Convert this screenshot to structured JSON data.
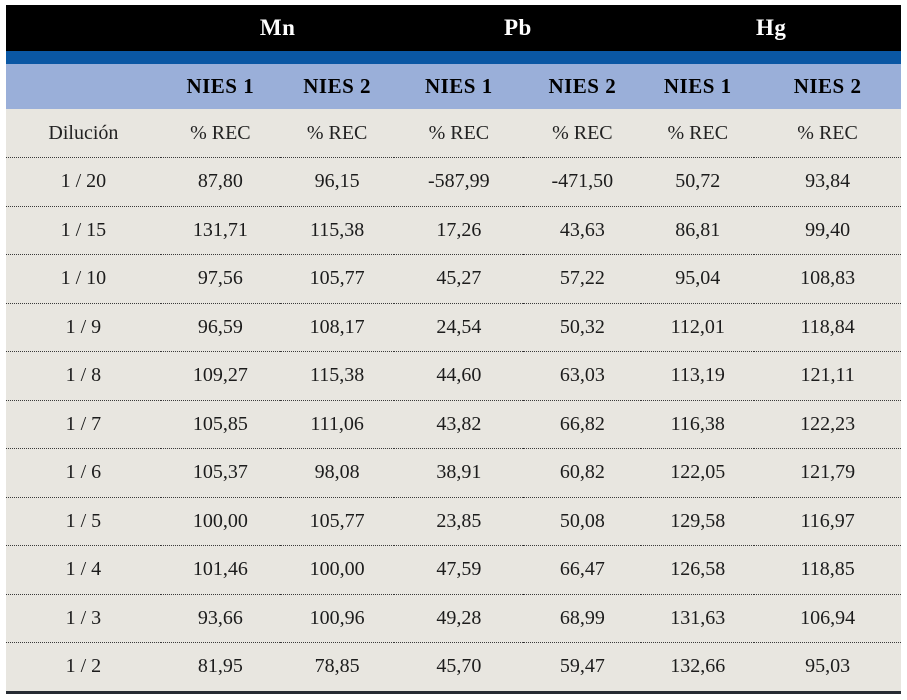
{
  "table": {
    "groups": [
      "Mn",
      "Pb",
      "Hg"
    ],
    "subheaders": [
      "NIES 1",
      "NIES 2",
      "NIES 1",
      "NIES 2",
      "NIES 1",
      "NIES 2"
    ],
    "row_label_header": "Dilución",
    "unit_label": "% REC",
    "rows": [
      {
        "dilution": "1 / 20",
        "values": [
          "87,80",
          "96,15",
          "-587,99",
          "-471,50",
          "50,72",
          "93,84"
        ]
      },
      {
        "dilution": "1 / 15",
        "values": [
          "131,71",
          "115,38",
          "17,26",
          "43,63",
          "86,81",
          "99,40"
        ]
      },
      {
        "dilution": "1 / 10",
        "values": [
          "97,56",
          "105,77",
          "45,27",
          "57,22",
          "95,04",
          "108,83"
        ]
      },
      {
        "dilution": "1 / 9",
        "values": [
          "96,59",
          "108,17",
          "24,54",
          "50,32",
          "112,01",
          "118,84"
        ]
      },
      {
        "dilution": "1 / 8",
        "values": [
          "109,27",
          "115,38",
          "44,60",
          "63,03",
          "113,19",
          "121,11"
        ]
      },
      {
        "dilution": "1 / 7",
        "values": [
          "105,85",
          "111,06",
          "43,82",
          "66,82",
          "116,38",
          "122,23"
        ]
      },
      {
        "dilution": "1 / 6",
        "values": [
          "105,37",
          "98,08",
          "38,91",
          "60,82",
          "122,05",
          "121,79"
        ]
      },
      {
        "dilution": "1 / 5",
        "values": [
          "100,00",
          "105,77",
          "23,85",
          "50,08",
          "129,58",
          "116,97"
        ]
      },
      {
        "dilution": "1 / 4",
        "values": [
          "101,46",
          "100,00",
          "47,59",
          "66,47",
          "126,58",
          "118,85"
        ]
      },
      {
        "dilution": "1 / 3",
        "values": [
          "93,66",
          "100,96",
          "49,28",
          "68,99",
          "131,63",
          "106,94"
        ]
      },
      {
        "dilution": "1 / 2",
        "values": [
          "81,95",
          "78,85",
          "45,70",
          "59,47",
          "132,66",
          "95,03"
        ]
      }
    ],
    "colors": {
      "header_bg": "#000000",
      "stripe": "#0a57a4",
      "subheader_bg": "#9aafd9",
      "body_bg": "#e8e6e0",
      "header_text": "#ffffff",
      "subheader_text": "#000000",
      "body_text": "#1c1c1c",
      "bottom_border": "#262b33"
    }
  }
}
